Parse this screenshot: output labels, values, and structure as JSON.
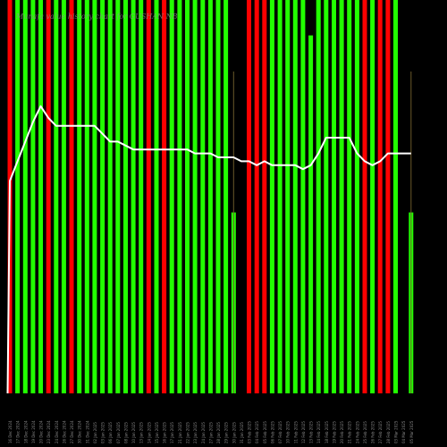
{
  "chart_data": {
    "type": "bar",
    "title": "Munafa value history chart for GUSHAN NB",
    "colors": {
      "up": "#22ff00",
      "down": "#ff0000",
      "line": "#ffffff",
      "background": "#000000"
    },
    "categories": [
      "16 Dec 2024",
      "17 Dec 2024",
      "18 Dec 2024",
      "19 Dec 2024",
      "20 Dec 2024",
      "23 Dec 2024",
      "24 Dec 2024",
      "26 Dec 2024",
      "27 Dec 2024",
      "30 Dec 2024",
      "31 Dec 2024",
      "02 Jan 2025",
      "03 Jan 2025",
      "06 Jan 2025",
      "07 Jan 2025",
      "08 Jan 2025",
      "10 Jan 2025",
      "13 Jan 2025",
      "14 Jan 2025",
      "15 Jan 2025",
      "16 Jan 2025",
      "17 Jan 2025",
      "21 Jan 2025",
      "22 Jan 2025",
      "23 Jan 2025",
      "24 Jan 2025",
      "27 Jan 2025",
      "28 Jan 2025",
      "29 Jan 2025",
      "30 Jan 2025",
      "31 Jan 2025",
      "03 Feb 2025",
      "04 Feb 2025",
      "05 Feb 2025",
      "06 Feb 2025",
      "07 Feb 2025",
      "10 Feb 2025",
      "11 Feb 2025",
      "12 Feb 2025",
      "13 Feb 2025",
      "14 Feb 2025",
      "18 Feb 2025",
      "19 Feb 2025",
      "20 Feb 2025",
      "21 Feb 2025",
      "24 Feb 2025",
      "25 Feb 2025",
      "26 Feb 2025",
      "27 Feb 2025",
      "28 Feb 2025",
      "03 Mar 2025",
      "04 Mar 2025",
      "05 Mar 2025"
    ],
    "x_tick_labels": [
      "16 Dec 2024",
      "17 Dec 2024",
      "18 Dec 2024",
      "19 Dec 2024",
      "20 Dec 2024",
      "23 Dec 2024",
      "24 Dec 2024",
      "26 Dec 2024",
      "27 Dec 2024",
      "30 Dec 2024",
      "31 Dec 2024",
      "02 Jan 2025",
      "03 Jan 2025",
      "06 Jan 2025",
      "07 Jan 2025",
      "08 Jan 2025",
      "10 Jan 2025",
      "13 Jan 2025",
      "14 Jan 2025",
      "15 Jan 2025",
      "16 Jan 2025",
      "17 Jan 2025",
      "21 Jan 2025",
      "22 Jan 2025",
      "23 Jan 2025",
      "24 Jan 2025",
      "27 Jan 2025",
      "28 Jan 2025",
      "29 Jan 2025",
      "30 Jan 2025",
      "31 Jan 2025",
      "03 Feb 2025",
      "04 Feb 2025",
      "05 Feb 2025",
      "06 Feb 2025",
      "07 Feb 2025",
      "10 Feb 2025",
      "11 Feb 2025",
      "12 Feb 2025",
      "13 Feb 2025",
      "14 Feb 2025",
      "18 Feb 2025",
      "19 Feb 2025",
      "20 Feb 2025",
      "21 Feb 2025",
      "24 Feb 2025",
      "25 Feb 2025",
      "26 Feb 2025",
      "27 Feb 2025",
      "28 Feb 2025",
      "03 Mar 2025",
      "04 Mar 2025",
      "05 Mar 2025"
    ],
    "bars": [
      {
        "value": 100,
        "dir": "down"
      },
      {
        "value": 100,
        "dir": "up"
      },
      {
        "value": 100,
        "dir": "up"
      },
      {
        "value": 100,
        "dir": "up"
      },
      {
        "value": 100,
        "dir": "up"
      },
      {
        "value": 100,
        "dir": "down"
      },
      {
        "value": 100,
        "dir": "up"
      },
      {
        "value": 100,
        "dir": "up"
      },
      {
        "value": 100,
        "dir": "down"
      },
      {
        "value": 100,
        "dir": "up"
      },
      {
        "value": 100,
        "dir": "up"
      },
      {
        "value": 100,
        "dir": "up"
      },
      {
        "value": 100,
        "dir": "up"
      },
      {
        "value": 100,
        "dir": "up"
      },
      {
        "value": 100,
        "dir": "up"
      },
      {
        "value": 100,
        "dir": "up"
      },
      {
        "value": 100,
        "dir": "up"
      },
      {
        "value": 100,
        "dir": "up"
      },
      {
        "value": 100,
        "dir": "down"
      },
      {
        "value": 100,
        "dir": "up"
      },
      {
        "value": 100,
        "dir": "down"
      },
      {
        "value": 100,
        "dir": "up"
      },
      {
        "value": 100,
        "dir": "up"
      },
      {
        "value": 100,
        "dir": "up"
      },
      {
        "value": 100,
        "dir": "up"
      },
      {
        "value": 100,
        "dir": "up"
      },
      {
        "value": 100,
        "dir": "up"
      },
      {
        "value": 100,
        "dir": "up"
      },
      {
        "value": 100,
        "dir": "up"
      },
      {
        "value": 46,
        "dir": "up"
      },
      {
        "value": 0,
        "dir": "up"
      },
      {
        "value": 100,
        "dir": "down"
      },
      {
        "value": 100,
        "dir": "down"
      },
      {
        "value": 100,
        "dir": "down"
      },
      {
        "value": 100,
        "dir": "up"
      },
      {
        "value": 100,
        "dir": "up"
      },
      {
        "value": 100,
        "dir": "up"
      },
      {
        "value": 100,
        "dir": "up"
      },
      {
        "value": 100,
        "dir": "up"
      },
      {
        "value": 91,
        "dir": "up"
      },
      {
        "value": 100,
        "dir": "up"
      },
      {
        "value": 100,
        "dir": "up"
      },
      {
        "value": 100,
        "dir": "up"
      },
      {
        "value": 100,
        "dir": "up"
      },
      {
        "value": 100,
        "dir": "up"
      },
      {
        "value": 100,
        "dir": "up"
      },
      {
        "value": 100,
        "dir": "down"
      },
      {
        "value": 100,
        "dir": "up"
      },
      {
        "value": 100,
        "dir": "down"
      },
      {
        "value": 100,
        "dir": "down"
      },
      {
        "value": 100,
        "dir": "up"
      },
      {
        "value": 0,
        "dir": "up"
      },
      {
        "value": 46,
        "dir": "up"
      }
    ],
    "line": [
      54,
      59,
      64,
      69,
      73,
      70,
      68,
      68,
      68,
      68,
      68,
      68,
      66,
      64,
      64,
      63,
      62,
      62,
      62,
      62,
      62,
      62,
      62,
      62,
      61,
      61,
      61,
      60,
      60,
      60,
      59,
      59,
      58,
      59,
      58,
      58,
      58,
      58,
      57,
      58,
      61,
      65,
      65,
      65,
      65,
      61,
      59,
      58,
      59,
      61,
      61,
      61,
      61
    ],
    "marker_lines": [
      29,
      52
    ],
    "ylim": [
      0,
      100
    ]
  }
}
